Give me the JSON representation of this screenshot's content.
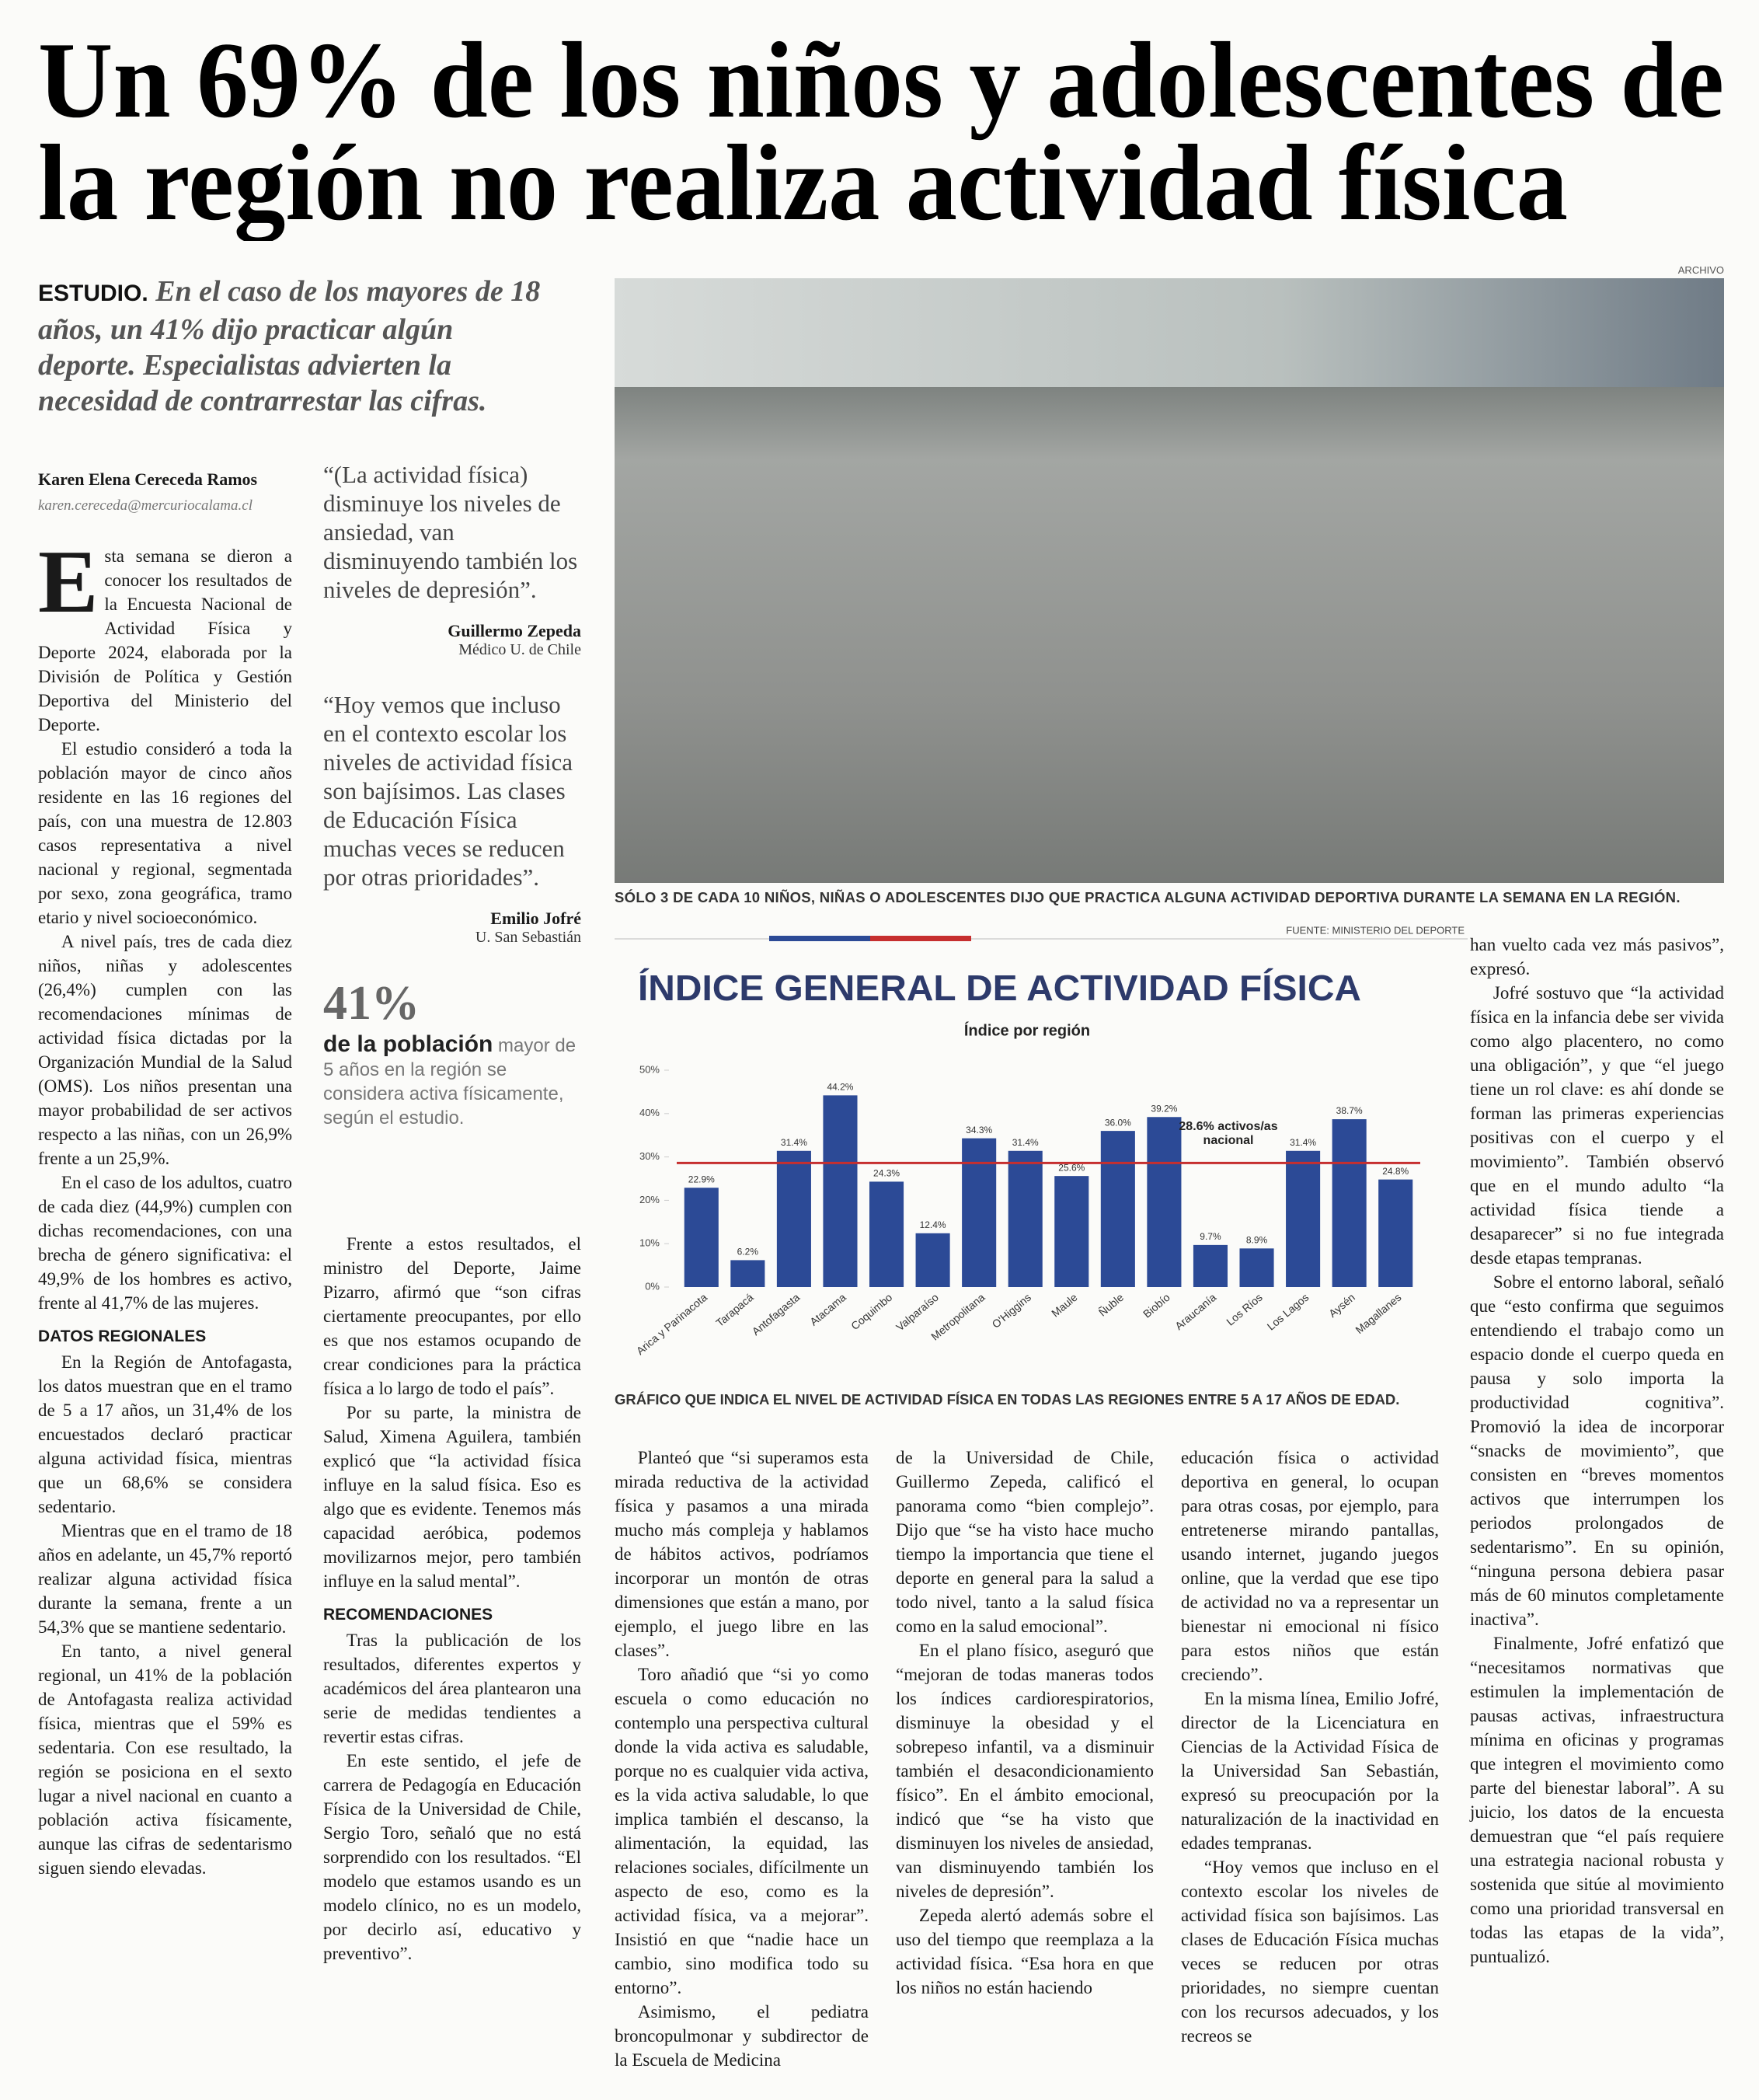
{
  "article": {
    "headline": [
      "Un 69% de los niños y adolescentes de",
      "la región no realiza actividad física"
    ],
    "deck": {
      "kicker": "ESTUDIO.",
      "text": "En el caso de los mayores de 18 años, un 41% dijo practicar algún deporte. Especialistas advierten la necesidad de contrarrestar las cifras."
    },
    "byline": {
      "author": "Karen Elena Cereceda Ramos",
      "email": "karen.cereceda@mercuriocalama.cl"
    },
    "photo": {
      "credit": "ARCHIVO",
      "caption": "SÓLO 3 DE CADA 10 NIÑOS, NIÑAS O ADOLESCENTES DIJO QUE PRACTICA ALGUNA ACTIVIDAD DEPORTIVA DURANTE LA SEMANA EN LA REGIÓN."
    },
    "sidebar": {
      "quotes": [
        {
          "text": "“(La actividad física) disminuye los niveles de ansiedad, van disminuyendo también los niveles de depresión”.",
          "name": "Guillermo Zepeda",
          "role": "Médico U. de Chile"
        },
        {
          "text": "“Hoy vemos que incluso en el contexto escolar los niveles de actividad física son bajísimos. Las clases de Educación Física muchas veces se reducen por otras prioridades”.",
          "name": "Emilio Jofré",
          "role": "U. San Sebastián"
        }
      ],
      "stat": {
        "figure": "41%",
        "lead": "de la población",
        "text": "mayor de 5 años en la región se considera activa físicamente, según el estudio."
      }
    },
    "columns": [
      [
        {
          "text": "Esta semana se dieron a conocer los resultados de la Encuesta Nacional de Actividad Física y Deporte 2024, elaborada por la División de Política y Gestión Deportiva del Ministerio del Deporte."
        },
        {
          "text": "El estudio consideró a toda la población mayor de cinco años residente en las 16 regiones del país, con una muestra de 12.803 casos representativa a nivel nacional y regional, segmentada por sexo, zona geográfica, tramo etario y nivel socioeconómico."
        },
        {
          "text": "A nivel país, tres de cada diez niños, niñas y adolescentes (26,4%) cumplen con las recomendaciones mínimas de actividad física dictadas por la Organización Mundial de la Salud (OMS). Los niños presentan una mayor probabilidad de ser activos respecto a las niñas, con un 26,9% frente a un 25,9%."
        },
        {
          "text": "En el caso de los adultos, cuatro de cada diez (44,9%) cumplen con dichas recomendaciones, con una brecha de género significativa: el 49,9% de los hombres es activo, frente al 41,7% de las mujeres."
        },
        {
          "subhead": "DATOS REGIONALES"
        },
        {
          "text": "En la Región de Antofagasta, los datos muestran que en el tramo de 5 a 17 años, un 31,4% de los encuestados declaró practicar alguna actividad física, mientras que un 68,6% se considera sedentario."
        },
        {
          "text": "Mientras que en el tramo de 18 años en adelante, un 45,7% reportó realizar alguna actividad física durante la semana, frente a un 54,3% que se mantiene sedentario."
        },
        {
          "text": "En tanto, a nivel general regional, un 41% de la población de Antofagasta realiza actividad física, mientras que el 59% es sedentaria. Con ese resultado, la región se posiciona en el sexto lugar a nivel nacional en cuanto a población activa físicamente, aunque las cifras de sedentarismo siguen siendo elevadas."
        }
      ],
      [
        {
          "text": "Frente a estos resultados, el ministro del Deporte, Jaime Pizarro, afirmó que “son cifras ciertamente preocupantes, por ello es que nos estamos ocupando de crear condiciones para la práctica física a lo largo de todo el país”."
        },
        {
          "text": "Por su parte, la ministra de Salud, Ximena Aguilera, también explicó que “la actividad física influye en la salud física. Eso es algo que es evidente. Tenemos más capacidad aeróbica, podemos movilizarnos mejor, pero también influye en la salud mental”."
        },
        {
          "subhead": "RECOMENDACIONES"
        },
        {
          "text": "Tras la publicación de los resultados, diferentes expertos y académicos del área plantearon una serie de medidas tendientes a revertir estas cifras."
        },
        {
          "text": "En este sentido, el jefe de carrera de Pedagogía en Educación Física de la Universidad de Chile, Sergio Toro, señaló que no está sorprendido con los resultados. “El modelo que estamos usando es un modelo clínico, no es un modelo, por decirlo así, educativo y preventivo”."
        }
      ],
      [
        {
          "text": "Planteó que “si superamos esta mirada reductiva de la actividad física y pasamos a una mirada mucho más compleja y hablamos de hábitos activos, podríamos incorporar un montón de otras dimensiones que están a mano, por ejemplo, el juego libre en las clases”."
        },
        {
          "text": "Toro añadió que “si yo como escuela o como educación no contemplo una perspectiva cultural donde la vida activa es saludable, porque no es cualquier vida activa, es la vida activa saludable, lo que implica también el descanso, la alimentación, la equidad, las relaciones sociales, difícilmente un aspecto de eso, como es la actividad física, va a mejorar”. Insistió en que “nadie hace un cambio, sino modifica todo su entorno”."
        },
        {
          "text": "Asimismo, el pediatra broncopulmonar y subdirector de la Escuela de Medicina"
        }
      ],
      [
        {
          "text": "de la Universidad de Chile, Guillermo Zepeda, calificó el panorama como “bien complejo”. Dijo que “se ha visto hace mucho tiempo la importancia que tiene el deporte en general para la salud a todo nivel, tanto a la salud física como en la salud emocional”."
        },
        {
          "text": "En el plano físico, aseguró que “mejoran de todas maneras todos los índices cardiorespiratorios, disminuye la obesidad y el sobrepeso infantil, va a disminuir también el desacondicionamiento físico”. En el ámbito emocional, indicó que “se ha visto que disminuyen los niveles de ansiedad, van disminuyendo también los niveles de depresión”."
        },
        {
          "text": "Zepeda alertó además sobre el uso del tiempo que reemplaza a la actividad física. “Esa hora en que los niños no están haciendo"
        }
      ],
      [
        {
          "text": "educación física o actividad deportiva en general, lo ocupan para otras cosas, por ejemplo, para entretenerse mirando pantallas, usando internet, jugando juegos online, que la verdad que ese tipo de actividad no va a representar un bienestar ni emocional ni físico para estos niños que están creciendo”."
        },
        {
          "text": "En la misma línea, Emilio Jofré, director de la Licenciatura en Ciencias de la Actividad Física de la Universidad San Sebastián, expresó su preocupación por la naturalización de la inactividad en edades tempranas."
        },
        {
          "text": "“Hoy vemos que incluso en el contexto escolar los niveles de actividad física son bajísimos. Las clases de Educación Física muchas veces se reducen por otras prioridades, no siempre cuentan con los recursos adecuados, y los recreos se"
        }
      ],
      [
        {
          "text": "han vuelto cada vez más pasivos”, expresó."
        },
        {
          "text": "Jofré sostuvo que “la actividad física en la infancia debe ser vivida como algo placentero, no como una obligación”, y que “el juego tiene un rol clave: es ahí donde se forman las primeras experiencias positivas con el cuerpo y el movimiento”. También observó que en el mundo adulto “la actividad física tiende a desaparecer” si no fue integrada desde etapas tempranas."
        },
        {
          "text": "Sobre el entorno laboral, señaló que “esto confirma que seguimos entendiendo el trabajo como un espacio donde el cuerpo queda en pausa y solo importa la productividad cognitiva”. Promovió la idea de incorporar “snacks de movimiento”, que consisten en “breves momentos activos que interrumpen los periodos prolongados de sedentarismo”. En su opinión, “ninguna persona debiera pasar más de 60 minutos completamente inactiva”."
        },
        {
          "text": "Finalmente, Jofré enfatizó que “necesitamos normativas que estimulen la implementación de pausas activas, infraestructura mínima en oficinas y programas que integren el movimiento como parte del bienestar laboral”. A su juicio, los datos de la encuesta demuestran que “el país requiere una estrategia nacional robusta y sostenida que sitúe al movimiento como una prioridad transversal en todas las etapas de la vida”, puntualizó."
        }
      ]
    ]
  },
  "chart_data": {
    "type": "bar",
    "source": "FUENTE: MINISTERIO DEL DEPORTE",
    "title": "ÍNDICE GENERAL DE ACTIVIDAD FÍSICA",
    "subtitle": "Índice por región",
    "caption": "GRÁFICO QUE INDICA EL NIVEL DE ACTIVIDAD FÍSICA EN TODAS LAS REGIONES ENTRE 5 A 17 AÑOS DE EDAD.",
    "categories": [
      "Arica y Parinacota",
      "Tarapacá",
      "Antofagasta",
      "Atacama",
      "Coquimbo",
      "Valparaíso",
      "Metropolitana",
      "O'Higgins",
      "Maule",
      "Ñuble",
      "Biobío",
      "Araucanía",
      "Los Ríos",
      "Los Lagos",
      "Aysén",
      "Magallanes"
    ],
    "values": [
      22.9,
      6.2,
      31.4,
      44.2,
      24.3,
      12.4,
      34.3,
      31.4,
      25.6,
      36.0,
      39.2,
      9.7,
      8.9,
      31.4,
      38.7,
      24.8
    ],
    "value_labels": [
      "22.9%",
      "6.2%",
      "31.4%",
      "44.2%",
      "24.3%",
      "12.4%",
      "34.3%",
      "31.4%",
      "25.6%",
      "36.0%",
      "39.2%",
      "9.7%",
      "8.9%",
      "31.4%",
      "38.7%",
      "24.8%"
    ],
    "color": "#2c4a96",
    "ylim": [
      0,
      50
    ],
    "yticks": [
      {
        "value": 0,
        "label": "0%"
      },
      {
        "value": 10,
        "label": "10%"
      },
      {
        "value": 20,
        "label": "20%"
      },
      {
        "value": 30,
        "label": "30%"
      },
      {
        "value": 40,
        "label": "40%"
      },
      {
        "value": 50,
        "label": "50%"
      }
    ],
    "reference_line": {
      "value": 28.6,
      "color": "#c62f2f",
      "label_lines": [
        "28.6% activos/as",
        "nacional"
      ]
    }
  }
}
